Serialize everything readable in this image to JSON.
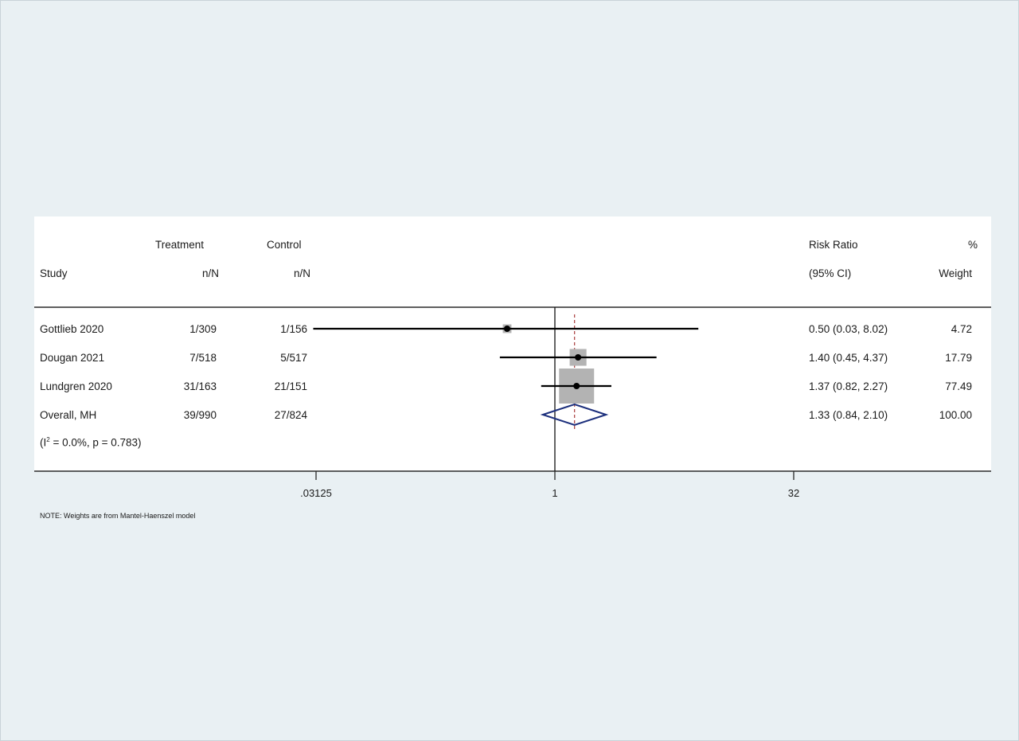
{
  "headers": {
    "study": "Study",
    "treatment_top": "Treatment",
    "treatment_sub": "n/N",
    "control_top": "Control",
    "control_sub": "n/N",
    "rr_top": "Risk Ratio",
    "rr_sub": "(95% CI)",
    "weight_top": "%",
    "weight_sub": "Weight"
  },
  "rows": [
    {
      "study": "Gottlieb 2020",
      "treatment": "1/309",
      "control": "1/156",
      "rr_text": "0.50 (0.03, 8.02)",
      "weight": "4.72"
    },
    {
      "study": "Dougan 2021",
      "treatment": "7/518",
      "control": "5/517",
      "rr_text": "1.40 (0.45, 4.37)",
      "weight": "17.79"
    },
    {
      "study": "Lundgren 2020",
      "treatment": "31/163",
      "control": "21/151",
      "rr_text": "1.37 (0.82, 2.27)",
      "weight": "77.49"
    },
    {
      "study": "Overall, MH",
      "treatment": "39/990",
      "control": "27/824",
      "rr_text": "1.33 (0.84, 2.10)",
      "weight": "100.00"
    }
  ],
  "heterogeneity": {
    "prefix": "(I",
    "sup": "2",
    "suffix": " = 0.0%, p = 0.783)"
  },
  "note": "NOTE: Weights are from Mantel-Haenszel model",
  "colors": {
    "background": "#e9f0f3",
    "panel": "#ffffff",
    "weight_box": "#b3b3b3",
    "diamond": "#1c2f7c",
    "overall_line": "#a83a3a"
  },
  "chart_data": {
    "type": "forest",
    "scale": "log2",
    "xlim": [
      0.03125,
      32
    ],
    "xticks": [
      0.03125,
      1,
      32
    ],
    "xtick_labels": [
      ".03125",
      "1",
      "32"
    ],
    "null_value": 1,
    "overall_estimate": 1.33,
    "studies": [
      {
        "name": "Gottlieb 2020",
        "rr": 0.5,
        "lo": 0.03,
        "hi": 8.02,
        "weight": 4.72
      },
      {
        "name": "Dougan 2021",
        "rr": 1.4,
        "lo": 0.45,
        "hi": 4.37,
        "weight": 17.79
      },
      {
        "name": "Lundgren 2020",
        "rr": 1.37,
        "lo": 0.82,
        "hi": 2.27,
        "weight": 77.49
      }
    ],
    "overall": {
      "name": "Overall, MH",
      "rr": 1.33,
      "lo": 0.84,
      "hi": 2.1
    }
  }
}
